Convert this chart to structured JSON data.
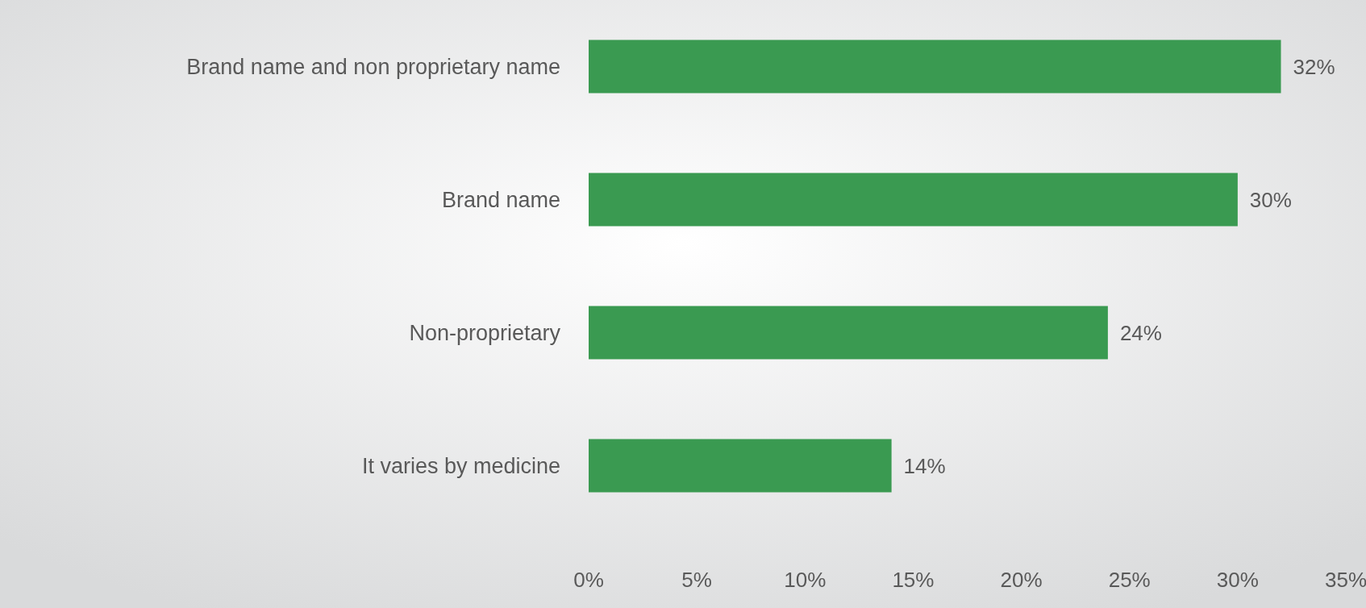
{
  "chart_data": {
    "type": "bar",
    "orientation": "horizontal",
    "categories": [
      "Brand name and non proprietary name",
      "Brand name",
      "Non-proprietary",
      "It varies by medicine"
    ],
    "values": [
      32,
      30,
      24,
      14
    ],
    "color": "#3a9a51",
    "data_labels": true,
    "value_labels": [
      "32%",
      "30%",
      "24%",
      "14%"
    ],
    "xlim": [
      0,
      35
    ],
    "xticks": [
      {
        "value": 0,
        "label": "0%"
      },
      {
        "value": 5,
        "label": "5%"
      },
      {
        "value": 10,
        "label": "10%"
      },
      {
        "value": 15,
        "label": "15%"
      },
      {
        "value": 20,
        "label": "20%"
      },
      {
        "value": 25,
        "label": "25%"
      },
      {
        "value": 30,
        "label": "30%"
      },
      {
        "value": 35,
        "label": "35%"
      }
    ]
  }
}
